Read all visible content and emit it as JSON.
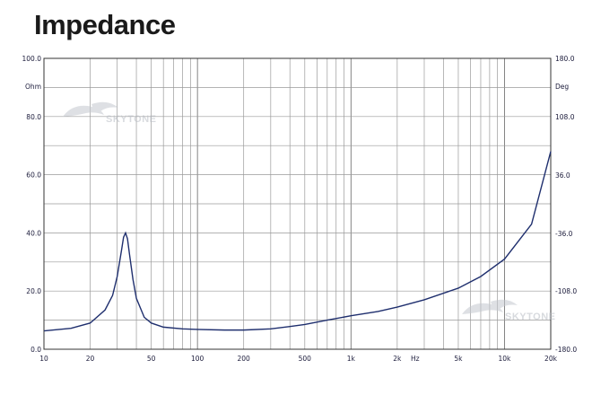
{
  "title": "Impedance",
  "chart_data": {
    "type": "line",
    "title": "Impedance",
    "x_scale": "log",
    "xlim": [
      10,
      20000
    ],
    "ylim_left": [
      0,
      100
    ],
    "ylim_right": [
      -180,
      180
    ],
    "ylabel_left": "Ohm",
    "ylabel_right": "Deg",
    "x_unit_label": "Hz",
    "x_ticks": [
      {
        "value": 10,
        "label": "10"
      },
      {
        "value": 20,
        "label": "20"
      },
      {
        "value": 50,
        "label": "50"
      },
      {
        "value": 100,
        "label": "100"
      },
      {
        "value": 200,
        "label": "200"
      },
      {
        "value": 500,
        "label": "500"
      },
      {
        "value": 1000,
        "label": "1k"
      },
      {
        "value": 2000,
        "label": "2k"
      },
      {
        "value": 5000,
        "label": "5k"
      },
      {
        "value": 10000,
        "label": "10k"
      },
      {
        "value": 20000,
        "label": "20k"
      }
    ],
    "y_ticks_left": [
      "100.0",
      "Ohm",
      "80.0",
      "60.0",
      "40.0",
      "20.0",
      "0.0"
    ],
    "y_ticks_right": [
      "180.0",
      "Deg",
      "108.0",
      "36.0",
      "-36.0",
      "-108.0",
      "-180.0"
    ],
    "grid": true,
    "series": [
      {
        "x": [
          10,
          15,
          20,
          25,
          28,
          30,
          32,
          33,
          34,
          35,
          36,
          38,
          40,
          45,
          50,
          60,
          80,
          100,
          150,
          200,
          300,
          400,
          500,
          700,
          1000,
          1500,
          2000,
          3000,
          5000,
          7000,
          10000,
          15000,
          20000
        ],
        "values": [
          6.3,
          7.2,
          9.0,
          13.5,
          18.5,
          25.0,
          34.0,
          38.5,
          40.0,
          38.0,
          33.0,
          24.0,
          17.5,
          11.0,
          9.0,
          7.6,
          7.0,
          6.8,
          6.6,
          6.6,
          7.0,
          7.8,
          8.5,
          10.0,
          11.5,
          13.0,
          14.5,
          17.0,
          21.0,
          25.0,
          31.0,
          43.0,
          68.0
        ],
        "color": "#1f2f6e"
      }
    ]
  },
  "watermark": {
    "text": "SKYTONE",
    "color": "#b8bcc4"
  }
}
